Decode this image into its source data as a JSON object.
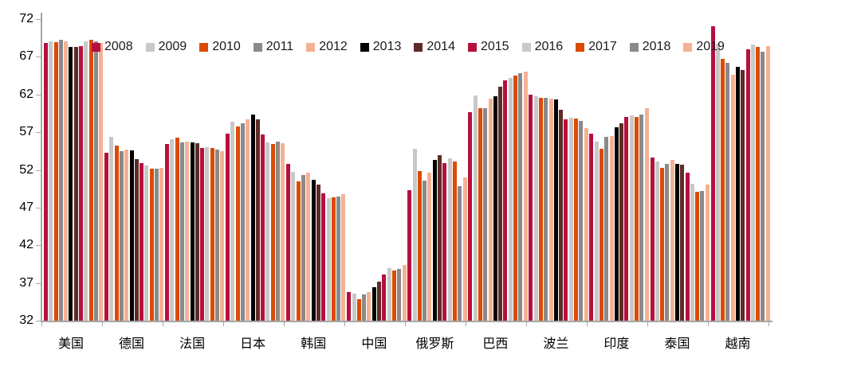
{
  "chart_data": {
    "type": "bar",
    "title": "",
    "categories": [
      "美国",
      "德国",
      "法国",
      "日本",
      "韩国",
      "中国",
      "俄罗斯",
      "巴西",
      "波兰",
      "印度",
      "泰国",
      "越南"
    ],
    "series": [
      {
        "name": "2008",
        "color": "#B6103F",
        "values": [
          68.8,
          54.3,
          55.4,
          56.8,
          52.8,
          35.8,
          49.3,
          59.7,
          62.0,
          56.8,
          53.6,
          71.1
        ]
      },
      {
        "name": "2009",
        "color": "#C8C8C8",
        "values": [
          69.0,
          56.4,
          56.1,
          58.4,
          51.7,
          35.6,
          54.8,
          61.9,
          61.8,
          55.7,
          53.1,
          68.7
        ]
      },
      {
        "name": "2010",
        "color": "#DC4B05",
        "values": [
          68.9,
          55.2,
          56.3,
          57.8,
          50.5,
          34.9,
          51.8,
          60.2,
          61.6,
          54.8,
          52.3,
          66.7
        ]
      },
      {
        "name": "2011",
        "color": "#8A8A8A",
        "values": [
          69.3,
          54.5,
          55.6,
          58.2,
          51.3,
          35.5,
          50.6,
          60.2,
          61.6,
          56.4,
          52.8,
          66.2
        ]
      },
      {
        "name": "2012",
        "color": "#F5B193",
        "values": [
          69.0,
          54.7,
          55.7,
          58.7,
          51.6,
          35.8,
          51.6,
          61.4,
          61.5,
          56.5,
          53.3,
          64.6
        ]
      },
      {
        "name": "2013",
        "color": "#000000",
        "values": [
          68.3,
          54.6,
          55.6,
          59.3,
          50.7,
          36.4,
          53.3,
          61.8,
          61.3,
          57.7,
          52.8,
          65.7
        ]
      },
      {
        "name": "2014",
        "color": "#5F2B26",
        "values": [
          68.3,
          53.4,
          55.5,
          58.7,
          50.1,
          37.2,
          54.0,
          63.0,
          60.0,
          58.2,
          52.7,
          65.2
        ]
      },
      {
        "name": "2015",
        "color": "#B6103F",
        "values": [
          68.4,
          52.9,
          54.9,
          56.7,
          48.9,
          38.1,
          52.9,
          63.9,
          58.7,
          59.0,
          51.6,
          68.0
        ]
      },
      {
        "name": "2016",
        "color": "#C8C8C8",
        "values": [
          69.1,
          52.6,
          55.0,
          55.6,
          48.3,
          39.0,
          53.5,
          64.2,
          58.9,
          59.2,
          50.2,
          68.6
        ]
      },
      {
        "name": "2017",
        "color": "#DC4B05",
        "values": [
          69.3,
          52.2,
          54.9,
          55.4,
          48.4,
          38.7,
          53.1,
          64.5,
          58.8,
          59.0,
          49.1,
          68.3
        ]
      },
      {
        "name": "2018",
        "color": "#8A8A8A",
        "values": [
          69.0,
          52.2,
          54.7,
          55.7,
          48.5,
          38.9,
          49.8,
          64.8,
          58.5,
          59.3,
          49.2,
          67.7
        ]
      },
      {
        "name": "2019",
        "color": "#F5B193",
        "values": [
          68.8,
          52.3,
          54.5,
          55.5,
          48.8,
          39.4,
          51.0,
          65.0,
          57.5,
          60.2,
          50.1,
          68.4
        ]
      }
    ],
    "y_axis": {
      "min": 32,
      "max": 72,
      "step": 5,
      "ticks": [
        72,
        67,
        62,
        57,
        52,
        47,
        42,
        37,
        32
      ]
    },
    "x_axis_label": "",
    "y_axis_label": "",
    "legend_position": "top",
    "grid": false
  },
  "colors": {
    "axis": "#a6a6a6",
    "text": "#000000",
    "background": "#ffffff"
  }
}
